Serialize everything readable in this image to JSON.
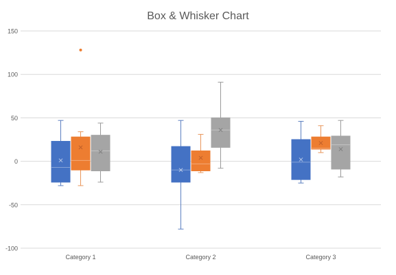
{
  "chart_data": {
    "type": "box",
    "title": "Box & Whisker Chart",
    "xlabel": "",
    "ylabel": "",
    "ylim": [
      -100,
      150
    ],
    "yticks": [
      150,
      100,
      50,
      0,
      -50,
      -100
    ],
    "ytick_labels": [
      "150",
      "100",
      "50",
      "0",
      "-50",
      "-100"
    ],
    "grid": true,
    "legend": "none",
    "categories": [
      "Category 1",
      "Category 2",
      "Category 3"
    ],
    "series": [
      {
        "color": "#4472C4",
        "boxes": [
          {
            "whisker_low": -28,
            "q1": -24,
            "median": -7,
            "q3": 23,
            "whisker_high": 47,
            "mean": 1,
            "outliers": []
          },
          {
            "whisker_low": -78,
            "q1": -24,
            "median": -10,
            "q3": 17,
            "whisker_high": 47,
            "mean": -10,
            "outliers": []
          },
          {
            "whisker_low": -25,
            "q1": -21,
            "median": -1,
            "q3": 25,
            "whisker_high": 46,
            "mean": 2,
            "outliers": []
          }
        ]
      },
      {
        "color": "#ED7D31",
        "boxes": [
          {
            "whisker_low": -28,
            "q1": -10,
            "median": 1,
            "q3": 28,
            "whisker_high": 34,
            "mean": 16,
            "outliers": [
              128
            ]
          },
          {
            "whisker_low": -13,
            "q1": -11,
            "median": -3,
            "q3": 12,
            "whisker_high": 31,
            "mean": 4,
            "outliers": []
          },
          {
            "whisker_low": 10,
            "q1": 14,
            "median": 15,
            "q3": 28,
            "whisker_high": 41,
            "mean": 21,
            "outliers": []
          }
        ]
      },
      {
        "color": "#A5A5A5",
        "boxes": [
          {
            "whisker_low": -24,
            "q1": -11,
            "median": 12,
            "q3": 30,
            "whisker_high": 44,
            "mean": 11,
            "outliers": []
          },
          {
            "whisker_low": -8,
            "q1": 16,
            "median": 36,
            "q3": 50,
            "whisker_high": 91,
            "mean": 36,
            "outliers": []
          },
          {
            "whisker_low": -18,
            "q1": -9,
            "median": 19,
            "q3": 29,
            "whisker_high": 47,
            "mean": 14,
            "outliers": []
          }
        ]
      }
    ]
  }
}
